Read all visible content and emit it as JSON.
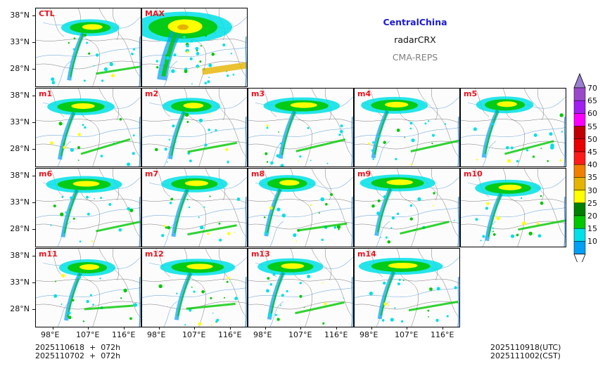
{
  "header": {
    "region": "CentralChina",
    "variable": "radarCRX",
    "model": "CMA-REPS"
  },
  "panels": [
    {
      "label": "CTL"
    },
    {
      "label": "MAX"
    },
    {
      "label": "m1"
    },
    {
      "label": "m2"
    },
    {
      "label": "m3"
    },
    {
      "label": "m4"
    },
    {
      "label": "m5"
    },
    {
      "label": "m6"
    },
    {
      "label": "m7"
    },
    {
      "label": "m8"
    },
    {
      "label": "m9"
    },
    {
      "label": "m10"
    },
    {
      "label": "m11"
    },
    {
      "label": "m12"
    },
    {
      "label": "m13"
    },
    {
      "label": "m14"
    }
  ],
  "axes": {
    "lat_labels": [
      "38°N",
      "33°N",
      "28°N"
    ],
    "lon_labels": [
      "98°E",
      "107°E",
      "116°E"
    ]
  },
  "colorbar": {
    "levels": [
      "70",
      "65",
      "60",
      "55",
      "50",
      "45",
      "40",
      "35",
      "30",
      "25",
      "20",
      "15",
      "10"
    ],
    "colors": [
      "#9a49c9",
      "#a020f0",
      "#ff00ff",
      "#c00000",
      "#e80000",
      "#ff1b1b",
      "#f08000",
      "#e6b400",
      "#ffff00",
      "#008000",
      "#00c800",
      "#00e0e6",
      "#00a0f5"
    ],
    "over_color": "#9a7fd1",
    "under_color": "#ffffff"
  },
  "footer": {
    "init_line1": "2025110618  +  072h",
    "init_line2": "2025110702  +  072h",
    "valid_utc": "2025110918(UTC)",
    "valid_cst": "2025111002(CST)"
  }
}
